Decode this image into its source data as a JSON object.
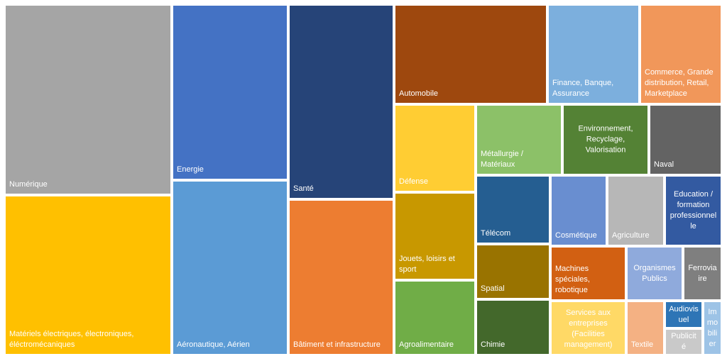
{
  "chart_data": {
    "type": "treemap",
    "title": "",
    "items": [
      {
        "name": "Numérique",
        "label": "Numérique",
        "color": "#a5a5a5"
      },
      {
        "name": "Matériels électriques, électroniques, électromécaniques",
        "label": "Matériels électriques, électroniques,\néléctromécaniques",
        "color": "#ffc000"
      },
      {
        "name": "Energie",
        "label": "Energie",
        "color": "#4472c4"
      },
      {
        "name": "Aéronautique, Aérien",
        "label": "Aéronautique, Aérien",
        "color": "#5b9bd5"
      },
      {
        "name": "Santé",
        "label": "Santé",
        "color": "#264478"
      },
      {
        "name": "Bâtiment et infrastructure",
        "label": "Bâtiment et infrastructure",
        "color": "#ed7d31"
      },
      {
        "name": "Automobile",
        "label": "Automobile",
        "color": "#9e480e"
      },
      {
        "name": "Finance, Banque, Assurance",
        "label": "Finance, Banque,\nAssurance",
        "color": "#7cafdd"
      },
      {
        "name": "Commerce, Grande distribution, Retail, Marketplace",
        "label": "Commerce, Grande\ndistribution, Retail,\nMarketplace",
        "color": "#f1975a"
      },
      {
        "name": "Défense",
        "label": "Défense",
        "color": "#ffcd33"
      },
      {
        "name": "Métallurgie / Matériaux",
        "label": "Métallurgie /\nMatériaux",
        "color": "#8cc168"
      },
      {
        "name": "Environnement, Recyclage, Valorisation",
        "label": "Environnement,\nRecyclage,\nValorisation",
        "color": "#548235"
      },
      {
        "name": "Naval",
        "label": "Naval",
        "color": "#636363"
      },
      {
        "name": "Jouets, loisirs et sport",
        "label": "Jouets, loisirs et\nsport",
        "color": "#c89800"
      },
      {
        "name": "Télécom",
        "label": "Télécom",
        "color": "#255e91"
      },
      {
        "name": "Cosmétique",
        "label": "Cosmétique",
        "color": "#698ed0"
      },
      {
        "name": "Agriculture",
        "label": "Agriculture",
        "color": "#b7b7b7"
      },
      {
        "name": "Education / formation professionnelle",
        "label": "Education /\nformation\nprofessionnel\nle",
        "color": "#335aa1"
      },
      {
        "name": "Agroalimentaire",
        "label": "Agroalimentaire",
        "color": "#70ad47"
      },
      {
        "name": "Spatial",
        "label": "Spatial",
        "color": "#997300"
      },
      {
        "name": "Chimie",
        "label": "Chimie",
        "color": "#43682b"
      },
      {
        "name": "Machines spéciales, robotique",
        "label": "Machines\nspéciales,\nrobotique",
        "color": "#d26012"
      },
      {
        "name": "Organismes Publics",
        "label": "Organismes\nPublics",
        "color": "#8faadc"
      },
      {
        "name": "Ferroviaire",
        "label": "Ferrovia\nire",
        "color": "#7f7f7f"
      },
      {
        "name": "Services aux entreprises (Facilities management)",
        "label": "Services aux\nentreprises\n(Facilities\nmanagement)",
        "color": "#ffd966"
      },
      {
        "name": "Textile",
        "label": "Textile",
        "color": "#f4b183"
      },
      {
        "name": "Audiovisuel",
        "label": "Audiovis\nuel",
        "color": "#2e75b6"
      },
      {
        "name": "Publicité",
        "label": "Publicit\né",
        "color": "#c9c9c9"
      },
      {
        "name": "Immobilier",
        "label": "Im\nmo\nbili\ner",
        "color": "#9dc3e6"
      }
    ]
  }
}
